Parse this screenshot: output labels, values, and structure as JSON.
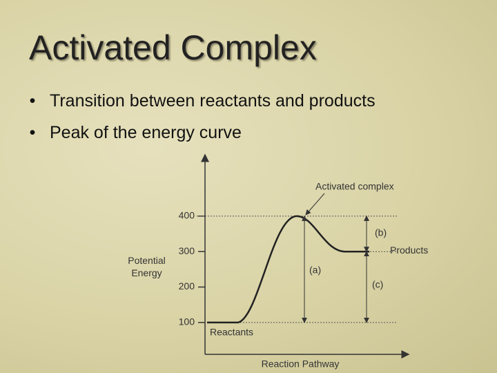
{
  "slide": {
    "title": "Activated Complex",
    "bullets": [
      "Transition between reactants and products",
      "Peak of the energy curve"
    ]
  },
  "chart_data": {
    "type": "energy-profile",
    "ylabel": "Potential Energy",
    "xlabel": "Reaction Pathway",
    "ylim": [
      16,
      577
    ],
    "yticks": [
      100,
      200,
      300,
      400
    ],
    "levels": [
      {
        "name": "Reactants",
        "value": 100
      },
      {
        "name": "Activated complex",
        "value": 400
      },
      {
        "name": "Products",
        "value": 300
      }
    ],
    "annotations": [
      "(a)",
      "(b)",
      "(c)"
    ]
  }
}
